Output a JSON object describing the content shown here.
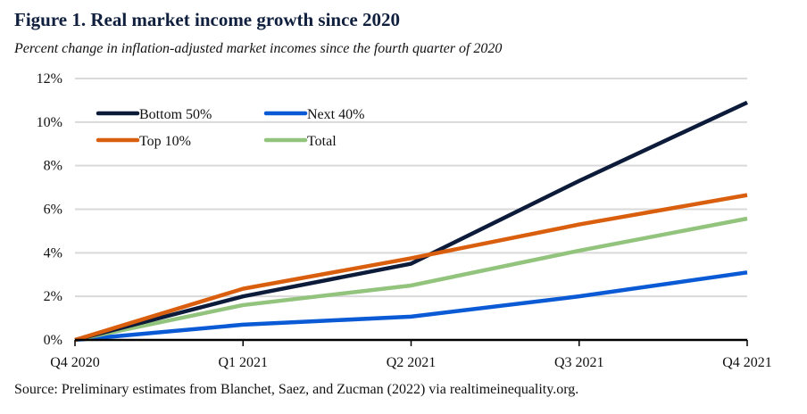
{
  "chart_data": {
    "type": "line",
    "title": "Figure 1. Real market income growth since 2020",
    "subtitle": "Percent change in inflation-adjusted market incomes since the fourth quarter of 2020",
    "source": "Source: Preliminary  estimates  from Blanchet,  Saez, and Zucman (2022) via  realtimeinequality.org.",
    "xlabel": "",
    "ylabel": "",
    "categories": [
      "Q4 2020",
      "Q1 2021",
      "Q2 2021",
      "Q3 2021",
      "Q4 2021"
    ],
    "ylim": [
      0,
      12
    ],
    "yticks": [
      0,
      2,
      4,
      6,
      8,
      10,
      12
    ],
    "ytick_labels": [
      "0%",
      "2%",
      "4%",
      "6%",
      "8%",
      "10%",
      "12%"
    ],
    "grid": true,
    "legend_position": "top-left",
    "series": [
      {
        "name": "Bottom 50%",
        "color": "#0d1b3a",
        "values": [
          0,
          2.0,
          3.5,
          7.3,
          10.9
        ]
      },
      {
        "name": "Next 40%",
        "color": "#0a5ad6",
        "values": [
          0,
          0.7,
          1.07,
          2.0,
          3.1
        ]
      },
      {
        "name": "Top 10%",
        "color": "#d95f0e",
        "values": [
          0,
          2.35,
          3.75,
          5.3,
          6.65
        ]
      },
      {
        "name": "Total",
        "color": "#93c47d",
        "values": [
          0,
          1.6,
          2.5,
          4.1,
          5.57
        ]
      }
    ]
  }
}
